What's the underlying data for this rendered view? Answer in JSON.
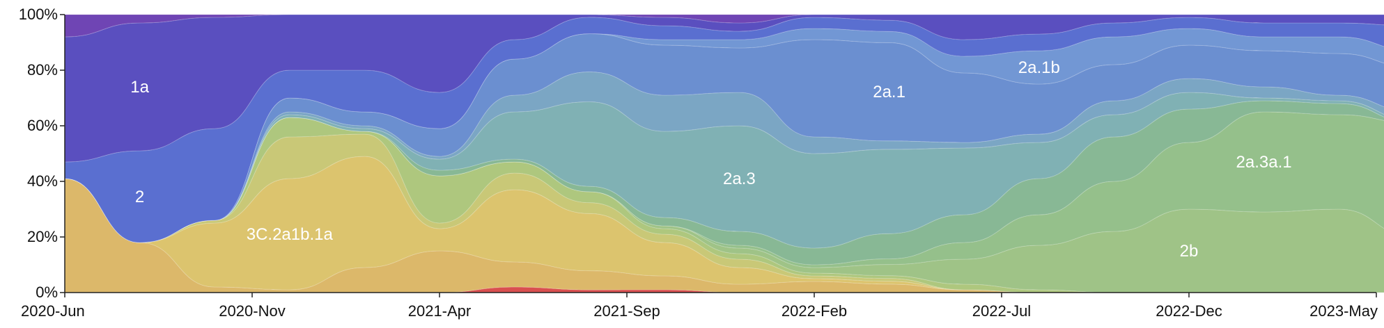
{
  "chart_data": {
    "type": "area",
    "stacked": true,
    "normalized_percent": true,
    "title": "",
    "xlabel": "",
    "ylabel": "",
    "x_ticks": [
      "2020-Jun",
      "2020-Nov",
      "2021-Apr",
      "2021-Sep",
      "2022-Feb",
      "2022-Jul",
      "2022-Dec",
      "2023-May"
    ],
    "y_ticks": [
      "0%",
      "20%",
      "40%",
      "60%",
      "80%",
      "100%"
    ],
    "ylim": [
      0,
      100
    ],
    "x": [
      "2020-06",
      "2020-08",
      "2020-10",
      "2020-12",
      "2021-02",
      "2021-04",
      "2021-06",
      "2021-08",
      "2021-10",
      "2021-12",
      "2022-02",
      "2022-04",
      "2022-06",
      "2022-08",
      "2022-10",
      "2022-12",
      "2023-02",
      "2023-04",
      "2023-06"
    ],
    "series": [
      {
        "name": "",
        "color": "#d94f4f",
        "values": [
          0,
          0,
          0,
          0,
          0,
          0,
          2,
          1,
          1,
          0,
          0,
          0,
          0,
          0,
          0,
          0,
          0,
          0,
          0
        ]
      },
      {
        "name": "",
        "color": "#dcb86a",
        "values": [
          41,
          18,
          2,
          1,
          9,
          15,
          9,
          7,
          5,
          3,
          4,
          3,
          1,
          0,
          0,
          0,
          0,
          0,
          0
        ]
      },
      {
        "name": "3C.2a1b.1a",
        "color": "#dcc46e",
        "values": [
          0,
          0,
          23,
          40,
          40,
          8,
          26,
          21,
          12,
          6,
          1,
          1,
          0,
          0,
          0,
          0,
          0,
          0,
          0
        ]
      },
      {
        "name": "",
        "color": "#c9c877",
        "values": [
          0,
          0,
          1,
          15,
          8,
          2,
          6,
          4,
          3,
          3,
          1,
          1,
          0,
          0,
          0,
          0,
          0,
          0,
          0
        ]
      },
      {
        "name": "",
        "color": "#aec77e",
        "values": [
          0,
          0,
          0,
          7,
          1,
          17,
          4,
          4,
          2,
          2,
          1,
          1,
          2,
          1,
          0,
          0,
          0,
          0,
          0
        ]
      },
      {
        "name": "2b",
        "color": "#9fc387",
        "values": [
          0,
          0,
          0,
          0,
          0,
          0,
          0,
          0,
          1,
          2,
          2,
          4,
          9,
          16,
          22,
          30,
          29,
          30,
          20
        ]
      },
      {
        "name": "2a.3a.1",
        "color": "#95c08b",
        "values": [
          0,
          0,
          0,
          0,
          0,
          0,
          0,
          0,
          0,
          1,
          1,
          2,
          6,
          11,
          18,
          24,
          36,
          34,
          41
        ]
      },
      {
        "name": "",
        "color": "#88b895",
        "values": [
          0,
          0,
          0,
          0,
          0,
          2,
          1,
          2,
          3,
          5,
          6,
          9,
          10,
          13,
          16,
          12,
          4,
          4,
          0
        ]
      },
      {
        "name": "2a.3",
        "color": "#80b1b4",
        "values": [
          0,
          0,
          0,
          1,
          1,
          4,
          17,
          31,
          31,
          38,
          34,
          30,
          24,
          13,
          8,
          6,
          1,
          1,
          1
        ]
      },
      {
        "name": "",
        "color": "#7ba6c4",
        "values": [
          0,
          0,
          0,
          1,
          1,
          1,
          6,
          11,
          13,
          12,
          6,
          3,
          2,
          3,
          5,
          5,
          4,
          2,
          3
        ]
      },
      {
        "name": "2a.1",
        "color": "#6b8fd0",
        "values": [
          0,
          0,
          0,
          5,
          5,
          10,
          13,
          14,
          18,
          16,
          35,
          35,
          25,
          18,
          13,
          12,
          13,
          15,
          16
        ]
      },
      {
        "name": "2a.1b",
        "color": "#7297d4",
        "values": [
          0,
          0,
          0,
          0,
          0,
          0,
          0,
          0,
          2,
          3,
          4,
          4,
          6,
          12,
          10,
          6,
          5,
          6,
          6
        ]
      },
      {
        "name": "2",
        "color": "#5a6fd0",
        "values": [
          6,
          33,
          33,
          10,
          15,
          13,
          7,
          6,
          5,
          3,
          4,
          4,
          6,
          6,
          5,
          4,
          5,
          5,
          9
        ]
      },
      {
        "name": "1a",
        "color": "#5a4fbf",
        "values": [
          45,
          46,
          40,
          20,
          20,
          28,
          9,
          1,
          3,
          3,
          1,
          2,
          9,
          7,
          3,
          1,
          3,
          3,
          4
        ]
      },
      {
        "name": "",
        "color": "#6f45b4",
        "values": [
          8,
          3,
          1,
          0,
          0,
          0,
          0,
          0,
          1,
          3,
          0,
          0,
          0,
          0,
          0,
          0,
          0,
          0,
          0
        ]
      }
    ]
  }
}
